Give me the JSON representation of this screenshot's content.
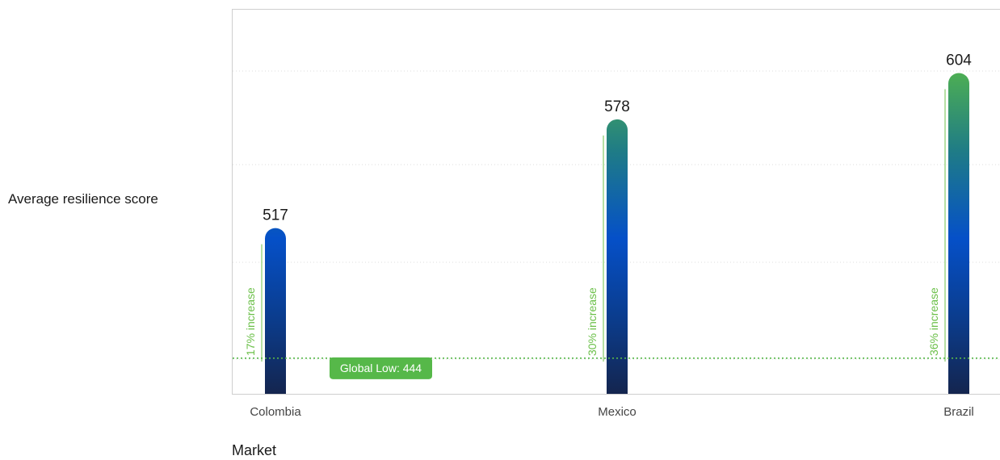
{
  "chart_data": {
    "type": "bar",
    "ylabel": "Average resilience score",
    "xlabel": "Market",
    "categories": [
      "Colombia",
      "Mexico",
      "Brazil"
    ],
    "values": [
      517,
      578,
      604
    ],
    "increase_labels": [
      "17% increase",
      "30% increase",
      "36% increase"
    ],
    "reference_line": {
      "label": "Global Low: 444",
      "value": 444,
      "color": "#56b849"
    },
    "ylim": [
      424,
      640
    ],
    "grid": "horizontal-dotted",
    "colors": {
      "bar_bottom": "#14254f",
      "bar_mid": "#0550c8",
      "bar_top": "#56b849",
      "annotation": "#6cc04a"
    }
  }
}
